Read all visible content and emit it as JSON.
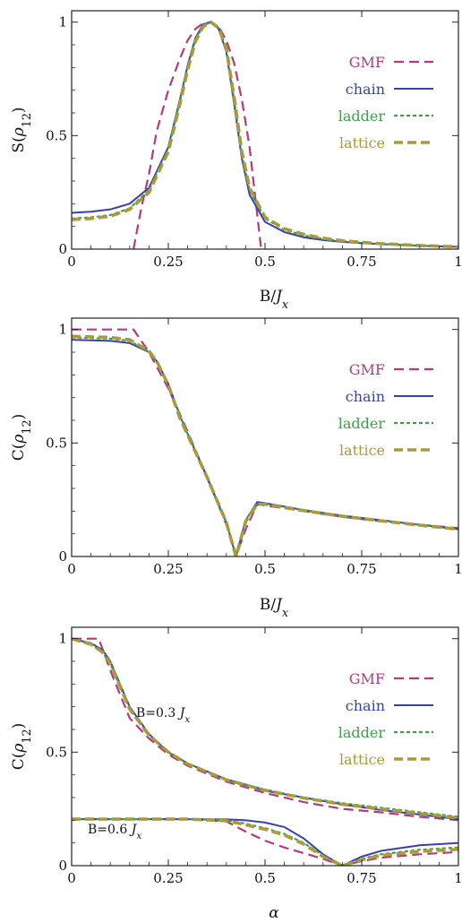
{
  "colors": {
    "GMF": "#b03c78",
    "chain": "#3b3fa8",
    "ladder": "#3f9f4c",
    "lattice": "#a99a3a"
  },
  "chart_data": [
    {
      "type": "line",
      "xlabel": "B/J_x",
      "ylabel": "S(ρ12)",
      "xlim": [
        0,
        1
      ],
      "ylim": [
        0,
        1.05
      ],
      "xticks": [
        0,
        0.25,
        0.5,
        0.75,
        1
      ],
      "xtick_labels": [
        "0",
        "0.25",
        "0.5",
        "0.75",
        "1"
      ],
      "yticks": [
        0,
        0.5,
        1
      ],
      "ytick_labels": [
        "0",
        "0.5",
        "1"
      ],
      "legend_position": "top-right",
      "series": [
        {
          "name": "GMF",
          "style": "dashed",
          "x": [
            0.16,
            0.18,
            0.2,
            0.22,
            0.25,
            0.28,
            0.3,
            0.32,
            0.34,
            0.36,
            0.38,
            0.4,
            0.42,
            0.44,
            0.46,
            0.48,
            0.49
          ],
          "y": [
            0,
            0.18,
            0.33,
            0.52,
            0.7,
            0.84,
            0.92,
            0.97,
            0.995,
            1.0,
            0.98,
            0.92,
            0.82,
            0.66,
            0.45,
            0.15,
            0
          ]
        },
        {
          "name": "chain",
          "style": "solid",
          "x": [
            0,
            0.05,
            0.1,
            0.15,
            0.2,
            0.25,
            0.28,
            0.3,
            0.32,
            0.34,
            0.36,
            0.38,
            0.4,
            0.42,
            0.44,
            0.46,
            0.5,
            0.55,
            0.6,
            0.65,
            0.7,
            0.75,
            0.8,
            0.9,
            1
          ],
          "y": [
            0.16,
            0.165,
            0.175,
            0.2,
            0.27,
            0.45,
            0.66,
            0.81,
            0.93,
            0.99,
            1.0,
            0.97,
            0.87,
            0.64,
            0.4,
            0.24,
            0.12,
            0.075,
            0.052,
            0.04,
            0.032,
            0.026,
            0.022,
            0.015,
            0.01
          ]
        },
        {
          "name": "ladder",
          "style": "dotted",
          "x": [
            0,
            0.05,
            0.1,
            0.15,
            0.2,
            0.25,
            0.28,
            0.3,
            0.32,
            0.34,
            0.36,
            0.38,
            0.4,
            0.42,
            0.44,
            0.46,
            0.5,
            0.55,
            0.6,
            0.65,
            0.7,
            0.75,
            0.8,
            0.9,
            1
          ],
          "y": [
            0.135,
            0.14,
            0.15,
            0.18,
            0.26,
            0.44,
            0.65,
            0.8,
            0.92,
            0.985,
            1.0,
            0.975,
            0.88,
            0.66,
            0.42,
            0.26,
            0.135,
            0.085,
            0.06,
            0.045,
            0.035,
            0.028,
            0.023,
            0.015,
            0.01
          ]
        },
        {
          "name": "lattice",
          "style": "dashed-thick",
          "x": [
            0,
            0.05,
            0.1,
            0.15,
            0.2,
            0.25,
            0.28,
            0.3,
            0.32,
            0.34,
            0.36,
            0.38,
            0.4,
            0.42,
            0.44,
            0.46,
            0.5,
            0.55,
            0.6,
            0.65,
            0.7,
            0.75,
            0.8,
            0.9,
            1
          ],
          "y": [
            0.13,
            0.135,
            0.145,
            0.175,
            0.25,
            0.43,
            0.64,
            0.79,
            0.915,
            0.98,
            1.0,
            0.975,
            0.885,
            0.67,
            0.43,
            0.27,
            0.14,
            0.09,
            0.065,
            0.048,
            0.037,
            0.03,
            0.024,
            0.016,
            0.01
          ]
        }
      ]
    },
    {
      "type": "line",
      "xlabel": "B/J_x",
      "ylabel": "C(ρ12)",
      "xlim": [
        0,
        1
      ],
      "ylim": [
        0,
        1.05
      ],
      "xticks": [
        0,
        0.25,
        0.5,
        0.75,
        1
      ],
      "xtick_labels": [
        "0",
        "0.25",
        "0.5",
        "0.75",
        "1"
      ],
      "yticks": [
        0,
        0.5,
        1
      ],
      "ytick_labels": [
        "0",
        "0.5",
        "1"
      ],
      "legend_position": "top-right",
      "series": [
        {
          "name": "GMF",
          "style": "dashed",
          "x": [
            0,
            0.16,
            0.2,
            0.25,
            0.3,
            0.35,
            0.4,
            0.425,
            0.45,
            0.48,
            0.5,
            0.6,
            0.7,
            0.8,
            0.9,
            1
          ],
          "y": [
            1,
            1,
            0.9,
            0.74,
            0.55,
            0.35,
            0.14,
            0.0,
            0.12,
            0.23,
            0.225,
            0.2,
            0.175,
            0.155,
            0.14,
            0.125
          ]
        },
        {
          "name": "chain",
          "style": "solid",
          "x": [
            0,
            0.1,
            0.15,
            0.2,
            0.22,
            0.25,
            0.28,
            0.3,
            0.35,
            0.4,
            0.425,
            0.45,
            0.48,
            0.5,
            0.6,
            0.7,
            0.8,
            0.9,
            1
          ],
          "y": [
            0.955,
            0.95,
            0.94,
            0.9,
            0.86,
            0.76,
            0.62,
            0.54,
            0.35,
            0.15,
            0.0,
            0.16,
            0.24,
            0.235,
            0.205,
            0.18,
            0.16,
            0.14,
            0.12
          ]
        },
        {
          "name": "ladder",
          "style": "dotted",
          "x": [
            0,
            0.1,
            0.15,
            0.2,
            0.22,
            0.25,
            0.28,
            0.3,
            0.35,
            0.4,
            0.425,
            0.45,
            0.48,
            0.5,
            0.6,
            0.7,
            0.8,
            0.9,
            1
          ],
          "y": [
            0.965,
            0.96,
            0.95,
            0.9,
            0.86,
            0.76,
            0.62,
            0.54,
            0.35,
            0.15,
            0.0,
            0.16,
            0.235,
            0.232,
            0.203,
            0.178,
            0.158,
            0.139,
            0.12
          ]
        },
        {
          "name": "lattice",
          "style": "dashed-thick",
          "x": [
            0,
            0.1,
            0.15,
            0.2,
            0.22,
            0.25,
            0.28,
            0.3,
            0.35,
            0.4,
            0.425,
            0.45,
            0.48,
            0.5,
            0.6,
            0.7,
            0.8,
            0.9,
            1
          ],
          "y": [
            0.97,
            0.965,
            0.955,
            0.905,
            0.86,
            0.755,
            0.61,
            0.535,
            0.35,
            0.15,
            0.0,
            0.155,
            0.23,
            0.23,
            0.202,
            0.177,
            0.157,
            0.138,
            0.12
          ]
        }
      ]
    },
    {
      "type": "line",
      "xlabel": "α",
      "ylabel": "C(ρ12)",
      "xlim": [
        0,
        1
      ],
      "ylim": [
        0,
        1.05
      ],
      "xticks": [
        0,
        0.25,
        0.5,
        0.75,
        1
      ],
      "xtick_labels": [
        "0",
        "0.25",
        "0.5",
        "0.75",
        "1"
      ],
      "yticks": [
        0,
        0.5,
        1
      ],
      "ytick_labels": [
        "0",
        "0.5",
        "1"
      ],
      "legend_position": "top-right",
      "annotations": [
        {
          "text": "B=0.3 J_x",
          "x": 0.17,
          "y": 0.73
        },
        {
          "text": "B=0.6 J_x",
          "x": 0.04,
          "y": 0.27
        }
      ],
      "series": [
        {
          "name": "GMF",
          "group": "B=0.3",
          "style": "dashed",
          "x": [
            0,
            0.07,
            0.1,
            0.15,
            0.2,
            0.25,
            0.3,
            0.4,
            0.5,
            0.6,
            0.7,
            0.8,
            0.9,
            1
          ],
          "y": [
            1,
            1,
            0.86,
            0.65,
            0.56,
            0.49,
            0.44,
            0.37,
            0.32,
            0.28,
            0.25,
            0.235,
            0.215,
            0.2
          ]
        },
        {
          "name": "chain",
          "group": "B=0.3",
          "style": "solid",
          "x": [
            0,
            0.05,
            0.08,
            0.1,
            0.12,
            0.15,
            0.2,
            0.25,
            0.3,
            0.4,
            0.5,
            0.6,
            0.7,
            0.8,
            0.9,
            1
          ],
          "y": [
            1,
            0.98,
            0.95,
            0.9,
            0.82,
            0.7,
            0.58,
            0.5,
            0.45,
            0.38,
            0.33,
            0.3,
            0.27,
            0.245,
            0.225,
            0.205
          ]
        },
        {
          "name": "ladder",
          "group": "B=0.3",
          "style": "dotted",
          "x": [
            0,
            0.05,
            0.08,
            0.1,
            0.12,
            0.15,
            0.2,
            0.25,
            0.3,
            0.4,
            0.5,
            0.6,
            0.7,
            0.8,
            0.9,
            1
          ],
          "y": [
            1,
            0.975,
            0.94,
            0.89,
            0.81,
            0.69,
            0.575,
            0.5,
            0.45,
            0.38,
            0.335,
            0.3,
            0.275,
            0.255,
            0.235,
            0.215
          ]
        },
        {
          "name": "lattice",
          "group": "B=0.3",
          "style": "dashed-thick",
          "x": [
            0,
            0.05,
            0.08,
            0.1,
            0.12,
            0.15,
            0.2,
            0.25,
            0.3,
            0.4,
            0.5,
            0.6,
            0.7,
            0.8,
            0.9,
            1
          ],
          "y": [
            1,
            0.975,
            0.94,
            0.89,
            0.81,
            0.69,
            0.575,
            0.5,
            0.448,
            0.378,
            0.332,
            0.298,
            0.27,
            0.25,
            0.23,
            0.21
          ]
        },
        {
          "name": "GMF",
          "group": "B=0.6",
          "style": "dashed",
          "x": [
            0,
            0.3,
            0.4,
            0.45,
            0.5,
            0.55,
            0.6,
            0.65,
            0.7,
            0.75,
            0.8,
            0.9,
            1
          ],
          "y": [
            0.205,
            0.205,
            0.195,
            0.15,
            0.11,
            0.08,
            0.055,
            0.03,
            0.0,
            0.02,
            0.035,
            0.05,
            0.06
          ]
        },
        {
          "name": "chain",
          "group": "B=0.6",
          "style": "solid",
          "x": [
            0,
            0.3,
            0.4,
            0.45,
            0.5,
            0.55,
            0.6,
            0.65,
            0.7,
            0.75,
            0.8,
            0.9,
            1
          ],
          "y": [
            0.205,
            0.205,
            0.204,
            0.2,
            0.19,
            0.17,
            0.12,
            0.05,
            0.0,
            0.04,
            0.065,
            0.09,
            0.1
          ]
        },
        {
          "name": "ladder",
          "group": "B=0.6",
          "style": "dotted",
          "x": [
            0,
            0.3,
            0.4,
            0.45,
            0.5,
            0.55,
            0.6,
            0.65,
            0.7,
            0.75,
            0.8,
            0.9,
            1
          ],
          "y": [
            0.205,
            0.205,
            0.2,
            0.185,
            0.165,
            0.14,
            0.1,
            0.045,
            0.0,
            0.03,
            0.05,
            0.07,
            0.08
          ]
        },
        {
          "name": "lattice",
          "group": "B=0.6",
          "style": "dashed-thick",
          "x": [
            0,
            0.3,
            0.4,
            0.45,
            0.5,
            0.55,
            0.6,
            0.65,
            0.7,
            0.75,
            0.8,
            0.9,
            1
          ],
          "y": [
            0.205,
            0.205,
            0.198,
            0.18,
            0.16,
            0.135,
            0.095,
            0.04,
            0.0,
            0.025,
            0.045,
            0.063,
            0.072
          ]
        }
      ]
    }
  ]
}
